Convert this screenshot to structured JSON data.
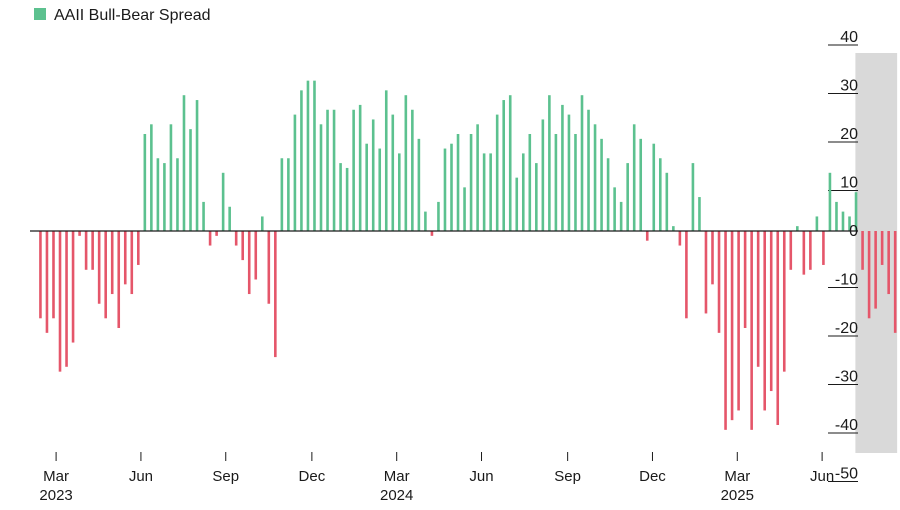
{
  "chart_data": {
    "type": "bar",
    "legend": {
      "label": "AAII Bull-Bear Spread",
      "color": "#5cc18f",
      "placement": "top-left"
    },
    "colors": {
      "positive": "#5cc18f",
      "negative": "#e5566a",
      "highlight": "#d9d9d9",
      "axis": "#1a1a1a"
    },
    "ylim": [
      -50,
      40
    ],
    "yticks": [
      40,
      30,
      20,
      10,
      0,
      -10,
      -20,
      -30,
      -40,
      -50
    ],
    "ytick_labels": [
      "40",
      "30",
      "20",
      "10",
      "0",
      "-10",
      "-20",
      "-30",
      "-40",
      "-50"
    ],
    "x_start_week": -1.6,
    "x_end_week": 125.3,
    "x_ticks": [
      {
        "week": 2.4,
        "month": "Mar",
        "year": "2023"
      },
      {
        "week": 15.4,
        "month": "Jun",
        "year": ""
      },
      {
        "week": 28.4,
        "month": "Sep",
        "year": ""
      },
      {
        "week": 41.6,
        "month": "Dec",
        "year": ""
      },
      {
        "week": 54.6,
        "month": "Mar",
        "year": "2024"
      },
      {
        "week": 67.6,
        "month": "Jun",
        "year": ""
      },
      {
        "week": 80.8,
        "month": "Sep",
        "year": ""
      },
      {
        "week": 93.8,
        "month": "Dec",
        "year": ""
      },
      {
        "week": 106.8,
        "month": "Mar",
        "year": "2025"
      },
      {
        "week": 119.8,
        "month": "Jun",
        "year": ""
      }
    ],
    "highlight_range": [
      124.9,
      131.3
    ],
    "values": [
      -18,
      -21,
      -18,
      -29,
      -28,
      -23,
      -1,
      -8,
      -8,
      -15,
      -18,
      -13,
      -20,
      -11,
      -13,
      -7,
      20,
      22,
      15,
      14,
      22,
      15,
      28,
      21,
      27,
      6,
      -3,
      -1,
      12,
      5,
      -3,
      -6,
      -13,
      -10,
      3,
      -15,
      -26,
      15,
      15,
      24,
      29,
      31,
      31,
      22,
      25,
      25,
      14,
      13,
      25,
      26,
      18,
      23,
      17,
      29,
      24,
      16,
      28,
      25,
      19,
      4,
      -1,
      6,
      17,
      18,
      20,
      9,
      20,
      22,
      16,
      16,
      24,
      27,
      28,
      11,
      16,
      20,
      14,
      23,
      28,
      20,
      26,
      24,
      20,
      28,
      25,
      22,
      19,
      15,
      9,
      6,
      14,
      22,
      19,
      -2,
      18,
      15,
      12,
      1,
      -3,
      -18,
      14,
      7,
      -17,
      -11,
      -21,
      -41,
      -39,
      -37,
      -20,
      -41,
      -28,
      -37,
      -33,
      -40,
      -29,
      -8,
      1,
      -9,
      -8,
      3,
      -7,
      12,
      6,
      4,
      3,
      8,
      -8,
      -18,
      -16,
      -7,
      -13,
      -21
    ]
  }
}
